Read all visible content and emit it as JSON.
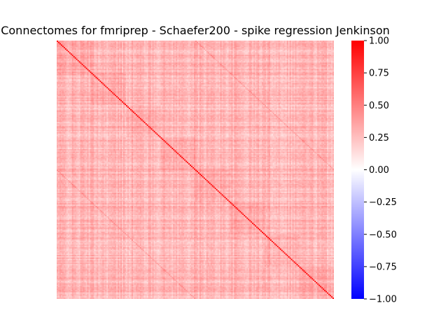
{
  "chart_data": {
    "type": "heatmap",
    "title": "Connectomes for fmriprep - Schaefer200 - spike regression Jenkinson",
    "matrix_size": 200,
    "diagonal_value": 1.0,
    "typical_off_diagonal_value": 0.3,
    "value_range": [
      -1.0,
      1.0
    ],
    "xlabel": "",
    "ylabel": "",
    "axis_ticks_visible": false,
    "grid": false,
    "colormap": {
      "name": "bwr",
      "min_color": "#0000ff",
      "mid_color": "#ffffff",
      "max_color": "#ff0000"
    },
    "colorbar": {
      "position": "right",
      "ticks": [
        1.0,
        0.75,
        0.5,
        0.25,
        0.0,
        -0.25,
        -0.5,
        -0.75,
        -1.0
      ],
      "tick_labels": [
        "1.00",
        "0.75",
        "0.50",
        "0.25",
        "0.00",
        "−0.25",
        "−0.50",
        "−0.75",
        "−1.00"
      ]
    }
  }
}
